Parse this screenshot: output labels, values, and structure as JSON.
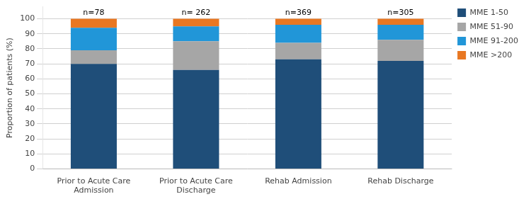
{
  "chart_data": {
    "type": "bar",
    "stacked": true,
    "categories": [
      "Prior to Acute Care\nAdmission",
      "Prior to Acute Care\nDischarge",
      "Rehab Admission",
      "Rehab Discharge"
    ],
    "series": [
      {
        "name": "MME 1-50",
        "color": "#1f4e79",
        "values": [
          70,
          66,
          73,
          72
        ]
      },
      {
        "name": "MME 51-90",
        "color": "#a6a6a6",
        "values": [
          9,
          19,
          11,
          14
        ]
      },
      {
        "name": "MME 91-200",
        "color": "#2196d8",
        "values": [
          15,
          10,
          12,
          10
        ]
      },
      {
        "name": "MME >200",
        "color": "#e87722",
        "values": [
          6,
          5,
          4,
          4
        ]
      }
    ],
    "annotations": [
      "n=78",
      "n= 262",
      "n=369",
      "n=305"
    ],
    "ylabel": "Proportion of patients (%)",
    "ylim": [
      0,
      108
    ],
    "yticks": [
      0,
      10,
      20,
      30,
      40,
      50,
      60,
      70,
      80,
      90,
      100
    ],
    "grid": true,
    "legend": "right"
  }
}
